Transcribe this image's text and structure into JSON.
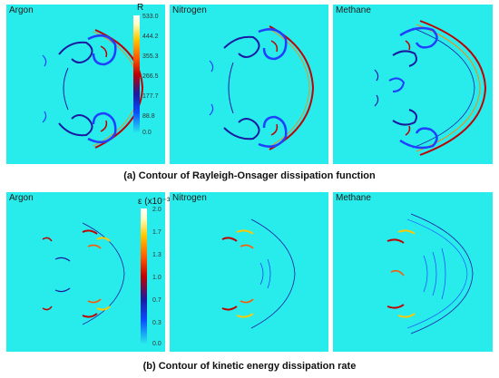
{
  "row1": {
    "panels": [
      "Argon",
      "Nitrogen",
      "Methane"
    ],
    "colorbar": {
      "title": "R",
      "ticks": [
        "533.0",
        "444.2",
        "355.3",
        "266.5",
        "177.7",
        "88.8",
        "0.0"
      ]
    },
    "caption": "(a) Contour of Rayleigh-Onsager dissipation function"
  },
  "row2": {
    "panels": [
      "Argon",
      "Nitrogen",
      "Methane"
    ],
    "colorbar": {
      "title": "ε (x10⁻³)",
      "ticks": [
        "2.0",
        "1.7",
        "1.3",
        "1.0",
        "0.7",
        "0.3",
        "0.0"
      ]
    },
    "caption": "(b) Contour of kinetic energy dissipation rate"
  },
  "colors": {
    "background": "#28ecec",
    "low": "#0a4cff",
    "mid": "#c10000",
    "high": "#ffffff"
  }
}
